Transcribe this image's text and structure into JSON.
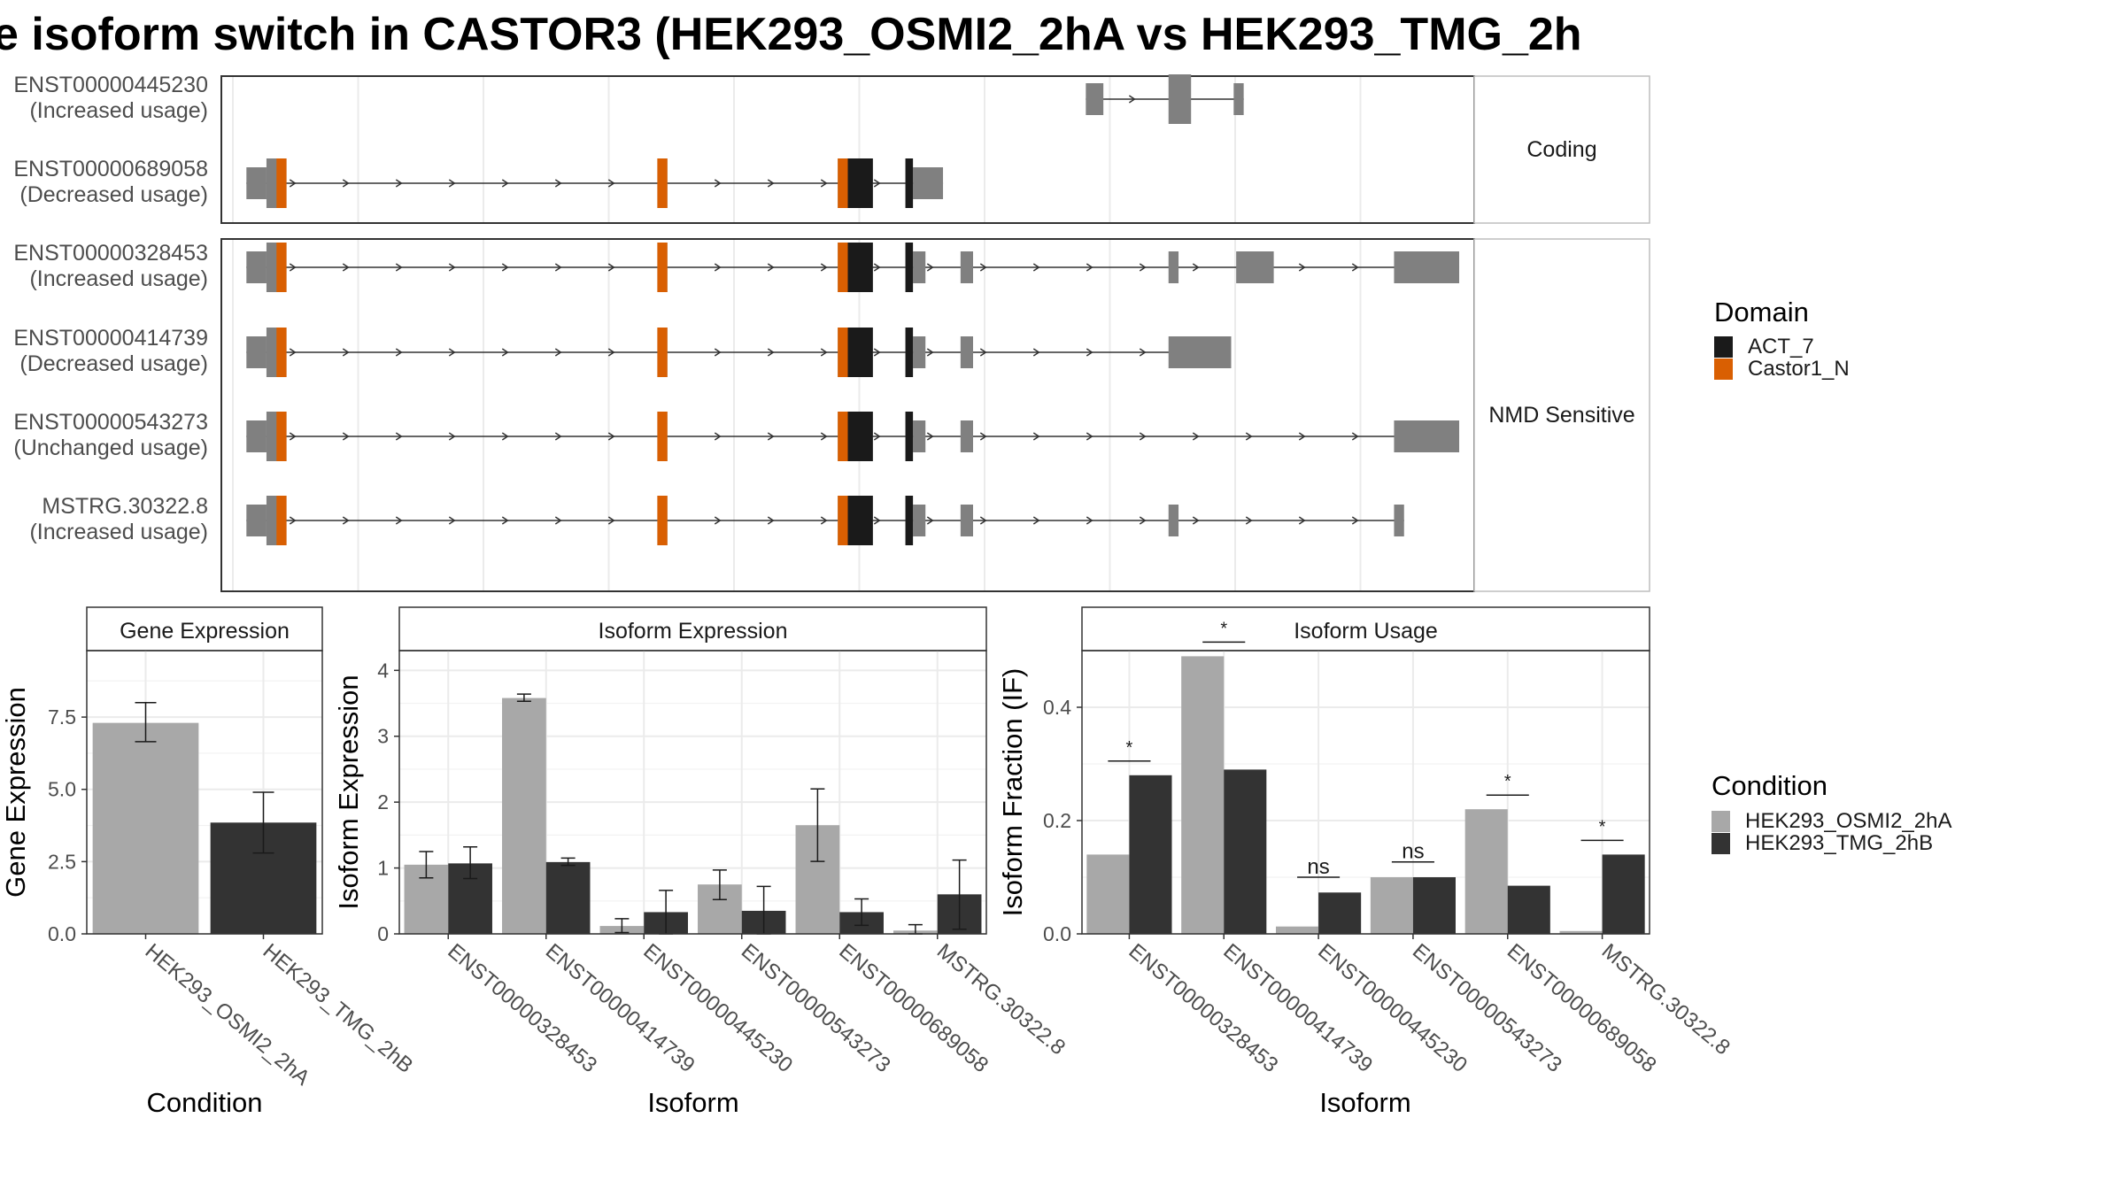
{
  "title": "e isoform switch in CASTOR3 (HEK293_OSMI2_2hA vs HEK293_TMG_2h",
  "colors": {
    "exon": "#808080",
    "act7": "#1a1a1a",
    "castor1n": "#d95f02",
    "cond_a": "#a8a8a8",
    "cond_b": "#333333",
    "grid": "#ebebeb",
    "panel_border": "#333333",
    "strip_fill": "#ffffff"
  },
  "transcript_panels": [
    {
      "strip_label": "Coding",
      "transcripts": [
        {
          "id": "ENST00000445230",
          "usage": "(Increased usage)",
          "exons": [
            [
              34.5,
              35.2,
              "u"
            ],
            [
              37.8,
              38.7,
              "c"
            ],
            [
              40.4,
              40.8,
              "u"
            ]
          ],
          "domains": []
        },
        {
          "id": "ENST00000689058",
          "usage": "(Decreased usage)",
          "exons": [
            [
              1.0,
              1.8,
              "u"
            ],
            [
              1.8,
              2.6,
              "c"
            ],
            [
              17.4,
              17.8,
              "c"
            ],
            [
              24.6,
              26.0,
              "c"
            ],
            [
              27.3,
              27.6,
              "c"
            ],
            [
              27.6,
              28.8,
              "u"
            ]
          ],
          "domains": [
            [
              2.2,
              2.6,
              "castor1n"
            ],
            [
              17.4,
              17.8,
              "castor1n"
            ],
            [
              24.6,
              25.0,
              "castor1n"
            ],
            [
              25.0,
              26.0,
              "act7"
            ],
            [
              27.3,
              27.6,
              "act7"
            ]
          ]
        }
      ]
    },
    {
      "strip_label": "NMD Sensitive",
      "transcripts": [
        {
          "id": "ENST00000328453",
          "usage": "(Increased usage)",
          "exons": [
            [
              1.0,
              1.8,
              "u"
            ],
            [
              1.8,
              2.6,
              "c"
            ],
            [
              17.4,
              17.8,
              "c"
            ],
            [
              24.6,
              26.0,
              "c"
            ],
            [
              27.3,
              27.6,
              "c"
            ],
            [
              27.6,
              28.1,
              "u"
            ],
            [
              29.5,
              30.0,
              "u"
            ],
            [
              37.8,
              38.2,
              "u"
            ],
            [
              40.5,
              42.0,
              "u"
            ],
            [
              46.8,
              49.4,
              "u"
            ]
          ],
          "domains": [
            [
              2.2,
              2.6,
              "castor1n"
            ],
            [
              17.4,
              17.8,
              "castor1n"
            ],
            [
              24.6,
              25.0,
              "castor1n"
            ],
            [
              25.0,
              26.0,
              "act7"
            ],
            [
              27.3,
              27.6,
              "act7"
            ]
          ]
        },
        {
          "id": "ENST00000414739",
          "usage": "(Decreased usage)",
          "exons": [
            [
              1.0,
              1.8,
              "u"
            ],
            [
              1.8,
              2.6,
              "c"
            ],
            [
              17.4,
              17.8,
              "c"
            ],
            [
              24.6,
              26.0,
              "c"
            ],
            [
              27.3,
              27.6,
              "c"
            ],
            [
              27.6,
              28.1,
              "u"
            ],
            [
              29.5,
              30.0,
              "u"
            ],
            [
              37.8,
              40.3,
              "u"
            ]
          ],
          "domains": [
            [
              2.2,
              2.6,
              "castor1n"
            ],
            [
              17.4,
              17.8,
              "castor1n"
            ],
            [
              24.6,
              25.0,
              "castor1n"
            ],
            [
              25.0,
              26.0,
              "act7"
            ],
            [
              27.3,
              27.6,
              "act7"
            ]
          ]
        },
        {
          "id": "ENST00000543273",
          "usage": "(Unchanged usage)",
          "exons": [
            [
              1.0,
              1.8,
              "u"
            ],
            [
              1.8,
              2.6,
              "c"
            ],
            [
              17.4,
              17.8,
              "c"
            ],
            [
              24.6,
              26.0,
              "c"
            ],
            [
              27.3,
              27.6,
              "c"
            ],
            [
              27.6,
              28.1,
              "u"
            ],
            [
              29.5,
              30.0,
              "u"
            ],
            [
              46.8,
              49.4,
              "u"
            ]
          ],
          "domains": [
            [
              2.2,
              2.6,
              "castor1n"
            ],
            [
              17.4,
              17.8,
              "castor1n"
            ],
            [
              24.6,
              25.0,
              "castor1n"
            ],
            [
              25.0,
              26.0,
              "act7"
            ],
            [
              27.3,
              27.6,
              "act7"
            ]
          ]
        },
        {
          "id": "MSTRG.30322.8",
          "usage": "(Increased usage)",
          "exons": [
            [
              1.0,
              1.8,
              "u"
            ],
            [
              1.8,
              2.6,
              "c"
            ],
            [
              17.4,
              17.8,
              "c"
            ],
            [
              24.6,
              26.0,
              "c"
            ],
            [
              27.3,
              27.6,
              "c"
            ],
            [
              27.6,
              28.1,
              "u"
            ],
            [
              29.5,
              30.0,
              "u"
            ],
            [
              37.8,
              38.2,
              "u"
            ],
            [
              46.8,
              47.2,
              "u"
            ]
          ],
          "domains": [
            [
              2.2,
              2.6,
              "castor1n"
            ],
            [
              17.4,
              17.8,
              "castor1n"
            ],
            [
              24.6,
              25.0,
              "castor1n"
            ],
            [
              25.0,
              26.0,
              "act7"
            ],
            [
              27.3,
              27.6,
              "act7"
            ]
          ]
        }
      ]
    }
  ],
  "domain_legend": {
    "title": "Domain",
    "entries": [
      {
        "label": "ACT_7",
        "color_key": "act7"
      },
      {
        "label": "Castor1_N",
        "color_key": "castor1n"
      }
    ]
  },
  "condition_legend": {
    "title": "Condition",
    "entries": [
      {
        "label": "HEK293_OSMI2_2hA",
        "color_key": "cond_a"
      },
      {
        "label": "HEK293_TMG_2hB",
        "color_key": "cond_b"
      }
    ]
  },
  "chart_data": [
    {
      "type": "bar",
      "title": "Gene Expression",
      "xlabel": "Condition",
      "ylabel": "Gene Expression",
      "ylim": [
        0,
        9.8
      ],
      "yticks": [
        "0.0",
        "2.5",
        "5.0",
        "7.5"
      ],
      "ytick_values": [
        0,
        2.5,
        5.0,
        7.5
      ],
      "categories": [
        "HEK293_OSMI2_2hA",
        "HEK293_TMG_2hB"
      ],
      "grouped": false,
      "values": [
        7.3,
        3.85
      ],
      "errors": [
        [
          6.65,
          8.0
        ],
        [
          2.8,
          4.9
        ]
      ]
    },
    {
      "type": "bar",
      "title": "Isoform Expression",
      "xlabel": "Isoform",
      "ylabel": "Isoform Expression",
      "ylim": [
        0,
        4.3
      ],
      "yticks": [
        "0",
        "1",
        "2",
        "3",
        "4"
      ],
      "ytick_values": [
        0,
        1,
        2,
        3,
        4
      ],
      "categories": [
        "ENST00000328453",
        "ENST00000414739",
        "ENST00000445230",
        "ENST00000543273",
        "ENST00000689058",
        "MSTRG.30322.8"
      ],
      "grouped": true,
      "series": [
        {
          "name": "HEK293_OSMI2_2hA",
          "color_key": "cond_a",
          "values": [
            1.05,
            3.58,
            0.12,
            0.75,
            1.65,
            0.05
          ],
          "errors": [
            [
              0.85,
              1.25
            ],
            [
              3.53,
              3.64
            ],
            [
              0.02,
              0.23
            ],
            [
              0.52,
              0.97
            ],
            [
              1.1,
              2.2
            ],
            [
              0.0,
              0.14
            ]
          ]
        },
        {
          "name": "HEK293_TMG_2hB",
          "color_key": "cond_b",
          "values": [
            1.07,
            1.09,
            0.33,
            0.35,
            0.33,
            0.6
          ],
          "errors": [
            [
              0.84,
              1.32
            ],
            [
              1.04,
              1.15
            ],
            [
              0.0,
              0.66
            ],
            [
              0.0,
              0.72
            ],
            [
              0.13,
              0.53
            ],
            [
              0.07,
              1.12
            ]
          ]
        }
      ]
    },
    {
      "type": "bar",
      "title": "Isoform Usage",
      "xlabel": "Isoform",
      "ylabel": "Isoform Fraction (IF)",
      "ylim": [
        0,
        0.5
      ],
      "yticks": [
        "0.0",
        "0.2",
        "0.4"
      ],
      "ytick_values": [
        0,
        0.2,
        0.4
      ],
      "categories": [
        "ENST00000328453",
        "ENST00000414739",
        "ENST00000445230",
        "ENST00000543273",
        "ENST00000689058",
        "MSTRG.30322.8"
      ],
      "grouped": true,
      "series": [
        {
          "name": "HEK293_OSMI2_2hA",
          "color_key": "cond_a",
          "values": [
            0.14,
            0.49,
            0.013,
            0.1,
            0.22,
            0.005
          ]
        },
        {
          "name": "HEK293_TMG_2hB",
          "color_key": "cond_b",
          "values": [
            0.28,
            0.29,
            0.073,
            0.1,
            0.085,
            0.14
          ]
        }
      ],
      "significance": [
        {
          "label": "*",
          "level": 0.305
        },
        {
          "label": "*",
          "level": 0.515
        },
        {
          "label": "ns",
          "level": 0.1
        },
        {
          "label": "ns",
          "level": 0.127
        },
        {
          "label": "*",
          "level": 0.245
        },
        {
          "label": "*",
          "level": 0.165
        }
      ]
    }
  ]
}
